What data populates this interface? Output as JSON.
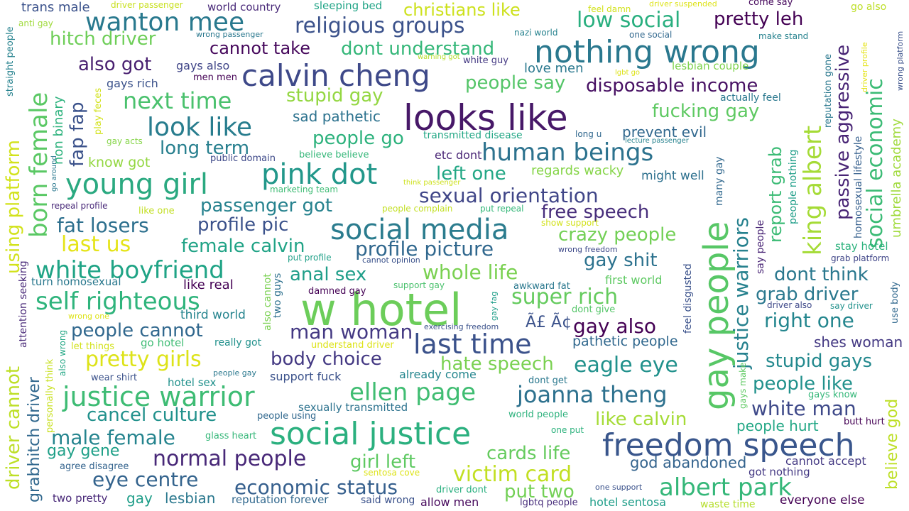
{
  "word_cloud": {
    "words": [
      {
        "text": "looks like",
        "color": "#471868"
      },
      {
        "text": "w hotel",
        "color": "#6ccd5a"
      },
      {
        "text": "gay people",
        "color": "#57c766"
      },
      {
        "text": "nothing wrong",
        "color": "#2a788e"
      },
      {
        "text": "social justice",
        "color": "#2bb07f"
      },
      {
        "text": "calvin cheng",
        "color": "#3e4989"
      },
      {
        "text": "freedom speech",
        "color": "#39568c"
      },
      {
        "text": "pink dot",
        "color": "#22978a"
      },
      {
        "text": "young girl",
        "color": "#2aa980"
      },
      {
        "text": "social media",
        "color": "#2b7c8e"
      },
      {
        "text": "justice warrior",
        "color": "#3ebc74"
      },
      {
        "text": "king albert",
        "color": "#a5db36"
      },
      {
        "text": "white boyfriend",
        "color": "#20a486"
      },
      {
        "text": "self righteous",
        "color": "#2fb47c"
      },
      {
        "text": "ellen page",
        "color": "#40bd72"
      },
      {
        "text": "joanna theng",
        "color": "#2d718e"
      },
      {
        "text": "albert park",
        "color": "#35b779"
      },
      {
        "text": "last time",
        "color": "#3b528b"
      },
      {
        "text": "human beings",
        "color": "#2c728e"
      },
      {
        "text": "look like",
        "color": "#287d8e"
      },
      {
        "text": "wanton mee",
        "color": "#29798e"
      },
      {
        "text": "born female",
        "color": "#5ac864"
      },
      {
        "text": "justice warriors",
        "color": "#26818e"
      },
      {
        "text": "social economic",
        "color": "#3bbb75"
      },
      {
        "text": "passive aggressive",
        "color": "#482475"
      },
      {
        "text": "religious groups",
        "color": "#3b528b"
      },
      {
        "text": "low social",
        "color": "#29af7f"
      },
      {
        "text": "pretty leh",
        "color": "#440154"
      },
      {
        "text": "christians like",
        "color": "#cde11d"
      },
      {
        "text": "eagle eye",
        "color": "#21918c"
      },
      {
        "text": "pretty girls",
        "color": "#dde318"
      },
      {
        "text": "normal people",
        "color": "#482878"
      },
      {
        "text": "economic status",
        "color": "#355f8d"
      },
      {
        "text": "victim card",
        "color": "#c2df23"
      },
      {
        "text": "male female",
        "color": "#25848e"
      },
      {
        "text": "fat losers",
        "color": "#2d708e"
      },
      {
        "text": "profile picture",
        "color": "#31688e"
      },
      {
        "text": "man woman",
        "color": "#443983"
      },
      {
        "text": "sexual orientation",
        "color": "#404688"
      },
      {
        "text": "using platform",
        "color": "#d2e21b"
      },
      {
        "text": "driver cannot",
        "color": "#bddf26"
      },
      {
        "text": "grabhitch driver",
        "color": "#31688e"
      },
      {
        "text": "white man",
        "color": "#3e4989"
      },
      {
        "text": "next time",
        "color": "#4ac16d"
      },
      {
        "text": "cancel culture",
        "color": "#21918c"
      },
      {
        "text": "eye centre",
        "color": "#33638d"
      },
      {
        "text": "stupid gays",
        "color": "#23898e"
      },
      {
        "text": "right one",
        "color": "#24868e"
      },
      {
        "text": "whole life",
        "color": "#7ad151"
      },
      {
        "text": "hitch driver",
        "color": "#6ece58"
      },
      {
        "text": "also got",
        "color": "#481f70"
      },
      {
        "text": "cannot take",
        "color": "#46085c"
      },
      {
        "text": "dont understand",
        "color": "#35b779"
      },
      {
        "text": "fucking gay",
        "color": "#5ec962"
      },
      {
        "text": "disposable income",
        "color": "#471063"
      },
      {
        "text": "stupid gay",
        "color": "#93d741"
      },
      {
        "text": "people go",
        "color": "#2db27d"
      },
      {
        "text": "long term",
        "color": "#277f8e"
      },
      {
        "text": "people say",
        "color": "#54c568"
      },
      {
        "text": "left one",
        "color": "#22a785"
      },
      {
        "text": "last us",
        "color": "#e5e419"
      },
      {
        "text": "profile pic",
        "color": "#3b528b"
      },
      {
        "text": "passenger got",
        "color": "#26828e"
      },
      {
        "text": "female calvin",
        "color": "#20a386"
      },
      {
        "text": "free speech",
        "color": "#472d7b"
      },
      {
        "text": "crazy people",
        "color": "#73d056"
      },
      {
        "text": "gay shit",
        "color": "#2c728e"
      },
      {
        "text": "anal sex",
        "color": "#1f9e89"
      },
      {
        "text": "super rich",
        "color": "#65cb5e"
      },
      {
        "text": "dont think",
        "color": "#2a788e"
      },
      {
        "text": "grab driver",
        "color": "#2a788e"
      },
      {
        "text": "gay also",
        "color": "#440154"
      },
      {
        "text": "people cannot",
        "color": "#31688e"
      },
      {
        "text": "body choice",
        "color": "#443983"
      },
      {
        "text": "hate speech",
        "color": "#7ad151"
      },
      {
        "text": "people like",
        "color": "#21918c"
      },
      {
        "text": "like calvin",
        "color": "#a5db36"
      },
      {
        "text": "cards life",
        "color": "#65cb5e"
      },
      {
        "text": "girl left",
        "color": "#5ec962"
      },
      {
        "text": "put two",
        "color": "#73d056"
      },
      {
        "text": "gay gene",
        "color": "#1fa088"
      },
      {
        "text": "report grab",
        "color": "#3bbb75"
      },
      {
        "text": "believe god",
        "color": "#bddf26"
      },
      {
        "text": "umbrella academy",
        "color": "#9fda3a"
      },
      {
        "text": "trans male",
        "color": "#3b528b"
      },
      {
        "text": "world country",
        "color": "#482878"
      },
      {
        "text": "sleeping bed",
        "color": "#20a486"
      },
      {
        "text": "love men",
        "color": "#2a788e"
      },
      {
        "text": "lesbian couple",
        "color": "#7fd34e"
      },
      {
        "text": "prevent evil",
        "color": "#31688e"
      },
      {
        "text": "regards wacky",
        "color": "#86d549"
      },
      {
        "text": "might well",
        "color": "#2d708e"
      },
      {
        "text": "know got",
        "color": "#93d741"
      },
      {
        "text": "etc dont",
        "color": "#482475"
      },
      {
        "text": "sad pathetic",
        "color": "#2c728e"
      },
      {
        "text": "fap fap",
        "color": "#3b528b"
      },
      {
        "text": "non binary",
        "color": "#2db27d"
      },
      {
        "text": "gays rich",
        "color": "#3b528b"
      },
      {
        "text": "gays also",
        "color": "#404688"
      },
      {
        "text": "men men",
        "color": "#440154"
      },
      {
        "text": "stay hotel",
        "color": "#2db27d"
      },
      {
        "text": "shes woman",
        "color": "#443983"
      },
      {
        "text": "first world",
        "color": "#5ec962"
      },
      {
        "text": "like real",
        "color": "#440154"
      },
      {
        "text": "third world",
        "color": "#25848e"
      },
      {
        "text": "turn homosexual",
        "color": "#2a788e"
      },
      {
        "text": "pathetic people",
        "color": "#31688e"
      },
      {
        "text": "god abandoned",
        "color": "#33638d"
      },
      {
        "text": "people hurt",
        "color": "#22a785"
      },
      {
        "text": "cannot accept",
        "color": "#443983"
      },
      {
        "text": "got nothing",
        "color": "#443983"
      },
      {
        "text": "everyone else",
        "color": "#440154"
      },
      {
        "text": "two pretty",
        "color": "#482878"
      },
      {
        "text": "gay",
        "color": "#1f9e89"
      },
      {
        "text": "lesbian",
        "color": "#2a788e"
      },
      {
        "text": "reputation forever",
        "color": "#31688e"
      },
      {
        "text": "said wrong",
        "color": "#3b528b"
      },
      {
        "text": "allow men",
        "color": "#46085c"
      },
      {
        "text": "lgbtq people",
        "color": "#472d7b"
      },
      {
        "text": "hotel sentosa",
        "color": "#1f9e89"
      },
      {
        "text": "waste time",
        "color": "#b5de2b"
      },
      {
        "text": "support fuck",
        "color": "#3b528b"
      },
      {
        "text": "already come",
        "color": "#24868e"
      },
      {
        "text": "hotel sex",
        "color": "#21918c"
      },
      {
        "text": "wear shirt",
        "color": "#3b528b"
      },
      {
        "text": "sexually transmitted",
        "color": "#2c728e"
      },
      {
        "text": "people using",
        "color": "#31688e"
      },
      {
        "text": "glass heart",
        "color": "#35b779"
      },
      {
        "text": "agree disagree",
        "color": "#33638d"
      },
      {
        "text": "sentosa cove",
        "color": "#dde318"
      },
      {
        "text": "driver dont",
        "color": "#29af7f"
      },
      {
        "text": "one support",
        "color": "#3b528b"
      },
      {
        "text": "go hotel",
        "color": "#3ebc74"
      },
      {
        "text": "really got",
        "color": "#21918c"
      },
      {
        "text": "understand driver",
        "color": "#dde318"
      },
      {
        "text": "let things",
        "color": "#d2e21b"
      },
      {
        "text": "support gay",
        "color": "#4ac16d"
      },
      {
        "text": "damned gay",
        "color": "#440154"
      },
      {
        "text": "awkward fat",
        "color": "#2a788e"
      },
      {
        "text": "dont give",
        "color": "#54c568"
      },
      {
        "text": "driver also",
        "color": "#3e4989"
      },
      {
        "text": "say driver",
        "color": "#21918c"
      },
      {
        "text": "grab platform",
        "color": "#404688"
      },
      {
        "text": "exercising freedom",
        "color": "#3b528b"
      },
      {
        "text": "dont get",
        "color": "#2a788e"
      },
      {
        "text": "world people",
        "color": "#2db27d"
      },
      {
        "text": "one put",
        "color": "#2db27d"
      },
      {
        "text": "gays know",
        "color": "#35b779"
      },
      {
        "text": "butt hurt",
        "color": "#440154"
      },
      {
        "text": "wrong one",
        "color": "#dde318"
      },
      {
        "text": "people gay",
        "color": "#2a788e"
      },
      {
        "text": "driver passenger",
        "color": "#c8e020"
      },
      {
        "text": "anti gay",
        "color": "#9fda3a"
      },
      {
        "text": "wrong passenger",
        "color": "#2a788e"
      },
      {
        "text": "feel damn",
        "color": "#d2e21b"
      },
      {
        "text": "driver suspended",
        "color": "#dde318"
      },
      {
        "text": "come say",
        "color": "#46085c"
      },
      {
        "text": "go also",
        "color": "#bddf26"
      },
      {
        "text": "nazi world",
        "color": "#26828e"
      },
      {
        "text": "one social",
        "color": "#31688e"
      },
      {
        "text": "make stand",
        "color": "#26828e"
      },
      {
        "text": "warning got",
        "color": "#b5de2b"
      },
      {
        "text": "white guy",
        "color": "#443983"
      },
      {
        "text": "lgbt go",
        "color": "#dde318"
      },
      {
        "text": "actually feel",
        "color": "#2a788e"
      },
      {
        "text": "transmitted disease",
        "color": "#22a785"
      },
      {
        "text": "long u",
        "color": "#31688e"
      },
      {
        "text": "lecture passenger",
        "color": "#26828e"
      },
      {
        "text": "believe believe",
        "color": "#35b779"
      },
      {
        "text": "public domain",
        "color": "#3e4989"
      },
      {
        "text": "gay acts",
        "color": "#86d549"
      },
      {
        "text": "marketing team",
        "color": "#3ebc74"
      },
      {
        "text": "think passenger",
        "color": "#cde11d"
      },
      {
        "text": "repeal profile",
        "color": "#482878"
      },
      {
        "text": "people complain",
        "color": "#c2df23"
      },
      {
        "text": "put repeal",
        "color": "#35b779"
      },
      {
        "text": "like one",
        "color": "#c2df23"
      },
      {
        "text": "show support",
        "color": "#d2e21b"
      },
      {
        "text": "wrong freedom",
        "color": "#3e4989"
      },
      {
        "text": "put profile",
        "color": "#1fa088"
      },
      {
        "text": "cannot opinion",
        "color": "#3b528b"
      },
      {
        "text": "many gay",
        "color": "#31688e"
      },
      {
        "text": "say people",
        "color": "#482475"
      },
      {
        "text": "people nothing",
        "color": "#1f9e89"
      },
      {
        "text": "reputation gone",
        "color": "#2a788e"
      },
      {
        "text": "homosexual lifestyle",
        "color": "#355f8d"
      },
      {
        "text": "driver profile",
        "color": "#e5e419"
      },
      {
        "text": "wrong platform",
        "color": "#3b528b"
      },
      {
        "text": "straight people",
        "color": "#26828e"
      },
      {
        "text": "attention seeking",
        "color": "#482878"
      },
      {
        "text": "personally think",
        "color": "#c8e020"
      },
      {
        "text": "also wrong",
        "color": "#22a785"
      },
      {
        "text": "go around",
        "color": "#2a788e"
      },
      {
        "text": "play feces",
        "color": "#d2e21b"
      },
      {
        "text": "also cannot",
        "color": "#7ad151"
      },
      {
        "text": "two guys",
        "color": "#2d708e"
      },
      {
        "text": "gay fag",
        "color": "#1f9e89"
      },
      {
        "text": "feel disgusted",
        "color": "#3b528b"
      },
      {
        "text": "use body",
        "color": "#31688e"
      },
      {
        "text": "gays make",
        "color": "#5ec962"
      },
      {
        "text": "Ã£ Ã¢",
        "color": "#3b528b"
      }
    ]
  }
}
